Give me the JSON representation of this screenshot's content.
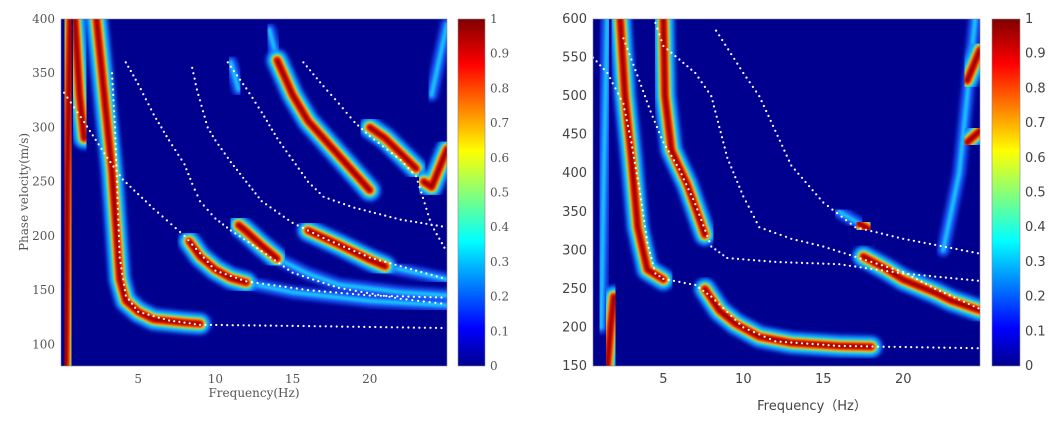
{
  "chart_data": [
    {
      "type": "heatmap",
      "xlabel": "Frequency(Hz)",
      "ylabel": "Phase velocity(m/s)",
      "xlim": [
        0,
        25
      ],
      "ylim": [
        80,
        400
      ],
      "xticks": [
        5,
        10,
        15,
        20
      ],
      "yticks": [
        100,
        150,
        200,
        250,
        300,
        350,
        400
      ],
      "colorbar": {
        "colormap": "jet",
        "range": [
          0,
          1
        ],
        "ticks": [
          "0",
          "0.1",
          "0.2",
          "0.3",
          "0.4",
          "0.5",
          "0.6",
          "0.7",
          "0.8",
          "0.9",
          "1"
        ]
      },
      "background_color": "#00008f",
      "energy_ridges": [
        [
          [
            0.3,
            80
          ],
          [
            0.4,
            250
          ],
          [
            0.6,
            400
          ]
        ],
        [
          [
            0.9,
            400
          ],
          [
            1.2,
            330
          ],
          [
            1.5,
            290
          ]
        ],
        [
          [
            2.3,
            400
          ],
          [
            2.8,
            330
          ],
          [
            3.3,
            260
          ],
          [
            3.6,
            200
          ],
          [
            3.8,
            160
          ],
          [
            4.2,
            140
          ],
          [
            5,
            130
          ],
          [
            6,
            123
          ],
          [
            8,
            120
          ],
          [
            9,
            119
          ]
        ],
        [
          [
            8.3,
            195
          ],
          [
            9,
            181
          ],
          [
            10,
            169
          ],
          [
            11,
            161
          ],
          [
            12,
            157
          ]
        ],
        [
          [
            11.5,
            210
          ],
          [
            12,
            204
          ],
          [
            13,
            191
          ],
          [
            14,
            179
          ]
        ],
        [
          [
            14,
            362
          ],
          [
            15,
            330
          ],
          [
            16,
            306
          ],
          [
            17,
            290
          ],
          [
            18,
            274
          ],
          [
            19,
            258
          ],
          [
            20,
            242
          ]
        ],
        [
          [
            20,
            300
          ],
          [
            21,
            290
          ],
          [
            22,
            276
          ],
          [
            23,
            262
          ]
        ],
        [
          [
            23.5,
            250
          ],
          [
            24,
            245
          ],
          [
            25,
            280
          ]
        ],
        [
          [
            16,
            205
          ],
          [
            18,
            192
          ],
          [
            20,
            178
          ],
          [
            21,
            172
          ]
        ]
      ],
      "weak_ridges": [
        [
          [
            12,
            157
          ],
          [
            15,
            148
          ],
          [
            20,
            140
          ],
          [
            25,
            136
          ]
        ],
        [
          [
            14,
            179
          ],
          [
            16,
            165
          ],
          [
            18,
            155
          ],
          [
            22,
            148
          ],
          [
            25,
            145
          ]
        ],
        [
          [
            21,
            172
          ],
          [
            25,
            160
          ]
        ],
        [
          [
            11,
            360
          ],
          [
            11.5,
            335
          ]
        ],
        [
          [
            13.5,
            390
          ],
          [
            14,
            362
          ]
        ],
        [
          [
            24,
            330
          ],
          [
            25,
            395
          ]
        ]
      ],
      "picked_curves": [
        [
          [
            3.3,
            350
          ],
          [
            3.5,
            300
          ],
          [
            3.6,
            260
          ],
          [
            3.7,
            220
          ],
          [
            3.8,
            180
          ],
          [
            4.2,
            145
          ],
          [
            5,
            130
          ],
          [
            7,
            122
          ],
          [
            9,
            118
          ],
          [
            15,
            117
          ],
          [
            25,
            115
          ]
        ],
        [
          [
            0.2,
            332
          ],
          [
            1.5,
            305
          ],
          [
            3,
            272
          ],
          [
            4,
            252
          ],
          [
            6,
            225
          ],
          [
            8,
            200
          ],
          [
            10,
            168
          ],
          [
            12,
            158
          ],
          [
            16,
            150
          ],
          [
            20,
            145
          ],
          [
            25,
            143
          ]
        ],
        [
          [
            4.2,
            360
          ],
          [
            5,
            340
          ],
          [
            6,
            312
          ],
          [
            7,
            288
          ],
          [
            8,
            266
          ],
          [
            8.5,
            248
          ],
          [
            9,
            232
          ],
          [
            10,
            216
          ],
          [
            11,
            205
          ],
          [
            13,
            186
          ],
          [
            15,
            166
          ],
          [
            18,
            152
          ],
          [
            22,
            142
          ],
          [
            25,
            137
          ]
        ],
        [
          [
            8.5,
            355
          ],
          [
            8.8,
            335
          ],
          [
            9.5,
            300
          ],
          [
            10,
            288
          ],
          [
            11,
            268
          ],
          [
            12,
            250
          ],
          [
            13,
            232
          ],
          [
            15,
            212
          ],
          [
            17,
            198
          ],
          [
            20,
            180
          ],
          [
            25,
            160
          ]
        ],
        [
          [
            10.8,
            360
          ],
          [
            12,
            336
          ],
          [
            13,
            314
          ],
          [
            14,
            290
          ],
          [
            15,
            270
          ],
          [
            16,
            250
          ],
          [
            17,
            236
          ],
          [
            19,
            226
          ],
          [
            22,
            215
          ],
          [
            25,
            208
          ]
        ],
        [
          [
            15.7,
            360
          ],
          [
            17,
            338
          ],
          [
            18,
            322
          ],
          [
            19,
            305
          ],
          [
            20,
            292
          ],
          [
            22,
            270
          ],
          [
            23,
            255
          ],
          [
            24,
            210
          ],
          [
            25,
            185
          ]
        ]
      ]
    },
    {
      "type": "heatmap",
      "xlabel": "Frequency（Hz）",
      "ylabel": "",
      "xlim": [
        0.6,
        24.8
      ],
      "ylim": [
        150,
        600
      ],
      "xticks": [
        5,
        10,
        15,
        20
      ],
      "yticks": [
        150,
        200,
        250,
        300,
        350,
        400,
        450,
        500,
        550,
        600
      ],
      "colorbar": {
        "colormap": "jet",
        "range": [
          0,
          1
        ],
        "ticks": [
          "0",
          "0.1",
          "0.2",
          "0.3",
          "0.4",
          "0.5",
          "0.6",
          "0.7",
          "0.8",
          "0.9",
          "1"
        ]
      },
      "background_color": "#00008f",
      "energy_ridges": [
        [
          [
            1.5,
            150
          ],
          [
            1.7,
            200
          ],
          [
            1.9,
            240
          ]
        ],
        [
          [
            2.3,
            600
          ],
          [
            2.6,
            500
          ],
          [
            3,
            420
          ],
          [
            3.4,
            330
          ],
          [
            4,
            275
          ],
          [
            5,
            262
          ]
        ],
        [
          [
            5,
            600
          ],
          [
            5.1,
            500
          ],
          [
            5.5,
            430
          ],
          [
            6.5,
            385
          ],
          [
            7.6,
            320
          ]
        ],
        [
          [
            7.6,
            250
          ],
          [
            8.5,
            222
          ],
          [
            9.5,
            205
          ],
          [
            11,
            188
          ],
          [
            13,
            180
          ],
          [
            16,
            176
          ],
          [
            18,
            175
          ]
        ],
        [
          [
            17.2,
            335
          ],
          [
            17.8,
            328
          ]
        ],
        [
          [
            17.5,
            292
          ],
          [
            19,
            275
          ],
          [
            20,
            262
          ],
          [
            22,
            245
          ],
          [
            23,
            235
          ],
          [
            24.8,
            222
          ]
        ],
        [
          [
            24,
            520
          ],
          [
            24.8,
            560
          ]
        ],
        [
          [
            24,
            440
          ],
          [
            24.8,
            455
          ]
        ]
      ],
      "weak_ridges": [
        [
          [
            1.1,
            200
          ],
          [
            1.3,
            420
          ],
          [
            1.5,
            600
          ]
        ],
        [
          [
            22.5,
            300
          ],
          [
            23.5,
            400
          ],
          [
            24.5,
            600
          ]
        ],
        [
          [
            16,
            350
          ],
          [
            17.2,
            335
          ]
        ]
      ],
      "picked_curves": [
        [
          [
            0.6,
            550
          ],
          [
            1.5,
            530
          ],
          [
            2.5,
            490
          ],
          [
            3,
            440
          ],
          [
            3.5,
            380
          ],
          [
            4,
            310
          ],
          [
            4.5,
            270
          ],
          [
            5,
            263
          ],
          [
            7,
            255
          ],
          [
            8,
            240
          ],
          [
            10,
            200
          ],
          [
            12,
            182
          ],
          [
            16,
            176
          ],
          [
            25,
            173
          ]
        ],
        [
          [
            2.5,
            575
          ],
          [
            3.5,
            520
          ],
          [
            4.2,
            480
          ],
          [
            5,
            440
          ],
          [
            6,
            405
          ],
          [
            7,
            360
          ],
          [
            8,
            305
          ],
          [
            9,
            290
          ],
          [
            12,
            285
          ],
          [
            16,
            282
          ],
          [
            20,
            270
          ],
          [
            25,
            260
          ]
        ],
        [
          [
            4.5,
            595
          ],
          [
            5,
            565
          ],
          [
            7,
            530
          ],
          [
            8,
            500
          ],
          [
            8.5,
            460
          ],
          [
            9,
            420
          ],
          [
            10,
            370
          ],
          [
            11,
            330
          ],
          [
            13,
            315
          ],
          [
            15,
            305
          ],
          [
            18,
            285
          ],
          [
            20,
            272
          ],
          [
            22,
            250
          ],
          [
            25,
            222
          ]
        ],
        [
          [
            8.3,
            585
          ],
          [
            10,
            530
          ],
          [
            11,
            500
          ],
          [
            12,
            455
          ],
          [
            13,
            410
          ],
          [
            15,
            362
          ],
          [
            17,
            330
          ],
          [
            20,
            315
          ],
          [
            25,
            295
          ]
        ]
      ]
    }
  ]
}
